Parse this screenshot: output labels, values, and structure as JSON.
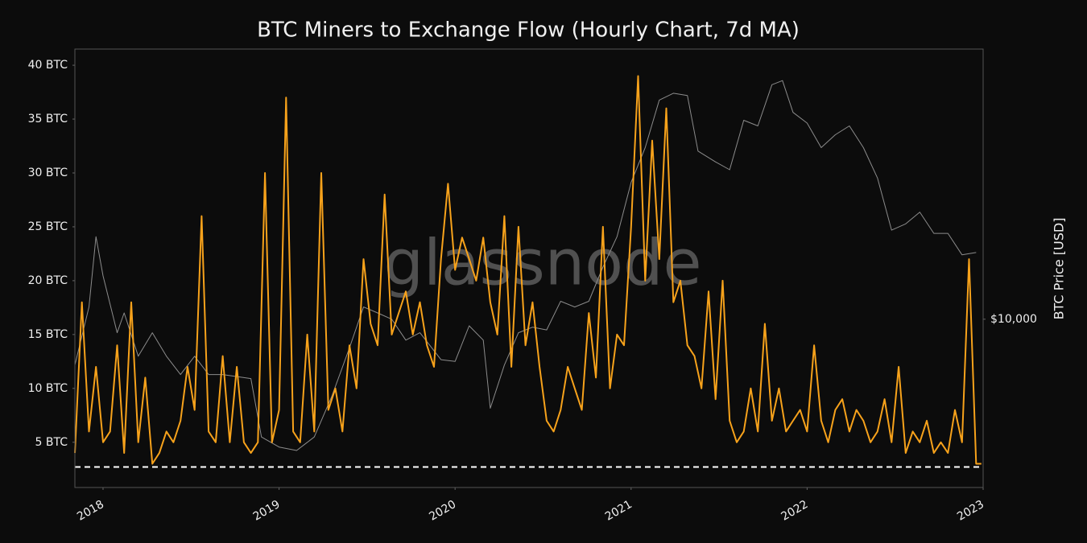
{
  "chart_data": {
    "type": "line",
    "title": "BTC Miners to Exchange Flow (Hourly Chart, 7d MA)",
    "watermark": "glassnode",
    "y2label": "BTC Price [USD]",
    "xlim": [
      2017.84,
      2023.0
    ],
    "xticks": [
      2018,
      2019,
      2020,
      2021,
      2022,
      2023
    ],
    "ylim": [
      0.8,
      41.5
    ],
    "yticks": [
      {
        "value": 5,
        "label": "5 BTC"
      },
      {
        "value": 10,
        "label": "10 BTC"
      },
      {
        "value": 15,
        "label": "15 BTC"
      },
      {
        "value": 20,
        "label": "20 BTC"
      },
      {
        "value": 25,
        "label": "25 BTC"
      },
      {
        "value": 30,
        "label": "30 BTC"
      },
      {
        "value": 35,
        "label": "35 BTC"
      },
      {
        "value": 40,
        "label": "40 BTC"
      }
    ],
    "y2lim": [
      2700,
      81800
    ],
    "y2log": true,
    "y2ticks": [
      {
        "value": 10000,
        "label": "$10,000"
      }
    ],
    "reference_line": 2.7,
    "grid": false,
    "series": [
      {
        "color": "#f7a21b",
        "axis": "y",
        "x": [
          2017.84,
          2017.88,
          2017.92,
          2017.96,
          2018.0,
          2018.04,
          2018.08,
          2018.12,
          2018.16,
          2018.2,
          2018.24,
          2018.28,
          2018.32,
          2018.36,
          2018.4,
          2018.44,
          2018.48,
          2018.52,
          2018.56,
          2018.6,
          2018.64,
          2018.68,
          2018.72,
          2018.76,
          2018.8,
          2018.84,
          2018.88,
          2018.92,
          2018.96,
          2019.0,
          2019.04,
          2019.08,
          2019.12,
          2019.16,
          2019.2,
          2019.24,
          2019.28,
          2019.32,
          2019.36,
          2019.4,
          2019.44,
          2019.48,
          2019.52,
          2019.56,
          2019.6,
          2019.64,
          2019.68,
          2019.72,
          2019.76,
          2019.8,
          2019.84,
          2019.88,
          2019.92,
          2019.96,
          2020.0,
          2020.04,
          2020.08,
          2020.12,
          2020.16,
          2020.2,
          2020.24,
          2020.28,
          2020.32,
          2020.36,
          2020.4,
          2020.44,
          2020.48,
          2020.52,
          2020.56,
          2020.6,
          2020.64,
          2020.68,
          2020.72,
          2020.76,
          2020.8,
          2020.84,
          2020.88,
          2020.92,
          2020.96,
          2021.0,
          2021.04,
          2021.08,
          2021.12,
          2021.16,
          2021.2,
          2021.24,
          2021.28,
          2021.32,
          2021.36,
          2021.4,
          2021.44,
          2021.48,
          2021.52,
          2021.56,
          2021.6,
          2021.64,
          2021.68,
          2021.72,
          2021.76,
          2021.8,
          2021.84,
          2021.88,
          2021.92,
          2021.96,
          2022.0,
          2022.04,
          2022.08,
          2022.12,
          2022.16,
          2022.2,
          2022.24,
          2022.28,
          2022.32,
          2022.36,
          2022.4,
          2022.44,
          2022.48,
          2022.52,
          2022.56,
          2022.6,
          2022.64,
          2022.68,
          2022.72,
          2022.76,
          2022.8,
          2022.84,
          2022.88,
          2022.92,
          2022.96,
          2022.99
        ],
        "values": [
          4,
          18,
          6,
          12,
          5,
          6,
          14,
          4,
          18,
          5,
          11,
          3,
          4,
          6,
          5,
          7,
          12,
          8,
          26,
          6,
          5,
          13,
          5,
          12,
          5,
          4,
          5,
          30,
          5,
          8,
          37,
          6,
          5,
          15,
          6,
          30,
          8,
          10,
          6,
          14,
          10,
          22,
          16,
          14,
          28,
          15,
          17,
          19,
          15,
          18,
          14,
          12,
          22,
          29,
          21,
          24,
          22,
          20,
          24,
          18,
          15,
          26,
          12,
          25,
          14,
          18,
          12,
          7,
          6,
          8,
          12,
          10,
          8,
          17,
          11,
          25,
          10,
          15,
          14,
          25,
          39,
          20,
          33,
          22,
          36,
          18,
          20,
          14,
          13,
          10,
          19,
          9,
          20,
          7,
          5,
          6,
          10,
          6,
          16,
          7,
          10,
          6,
          7,
          8,
          6,
          14,
          7,
          5,
          8,
          9,
          6,
          8,
          7,
          5,
          6,
          9,
          5,
          12,
          4,
          6,
          5,
          7,
          4,
          5,
          4,
          8,
          5,
          22,
          3,
          3
        ]
      },
      {
        "color": "#8c8c8c",
        "axis": "y2",
        "x": [
          2017.84,
          2017.92,
          2017.96,
          2018.0,
          2018.08,
          2018.12,
          2018.2,
          2018.28,
          2018.36,
          2018.44,
          2018.52,
          2018.6,
          2018.68,
          2018.76,
          2018.84,
          2018.9,
          2019.0,
          2019.1,
          2019.2,
          2019.3,
          2019.4,
          2019.48,
          2019.56,
          2019.64,
          2019.72,
          2019.8,
          2019.92,
          2020.0,
          2020.08,
          2020.16,
          2020.2,
          2020.28,
          2020.36,
          2020.44,
          2020.52,
          2020.6,
          2020.68,
          2020.76,
          2020.84,
          2020.92,
          2021.0,
          2021.08,
          2021.16,
          2021.24,
          2021.32,
          2021.38,
          2021.48,
          2021.56,
          2021.64,
          2021.72,
          2021.8,
          2021.86,
          2021.92,
          2022.0,
          2022.08,
          2022.16,
          2022.24,
          2022.32,
          2022.4,
          2022.48,
          2022.56,
          2022.64,
          2022.72,
          2022.8,
          2022.88,
          2022.96
        ],
        "values": [
          7000,
          11000,
          19000,
          14000,
          9000,
          10500,
          7500,
          9000,
          7500,
          6500,
          7500,
          6500,
          6500,
          6400,
          6300,
          4000,
          3700,
          3600,
          4000,
          5500,
          8000,
          11000,
          10500,
          10000,
          8500,
          9000,
          7300,
          7200,
          9500,
          8500,
          5000,
          7000,
          9000,
          9400,
          9200,
          11500,
          11000,
          11500,
          15000,
          19000,
          29000,
          38000,
          55000,
          58000,
          57000,
          37000,
          34000,
          32000,
          47000,
          45000,
          62000,
          64000,
          50000,
          46000,
          38000,
          42000,
          45000,
          38000,
          30000,
          20000,
          21000,
          23000,
          19500,
          19500,
          16500,
          16800
        ]
      }
    ]
  }
}
